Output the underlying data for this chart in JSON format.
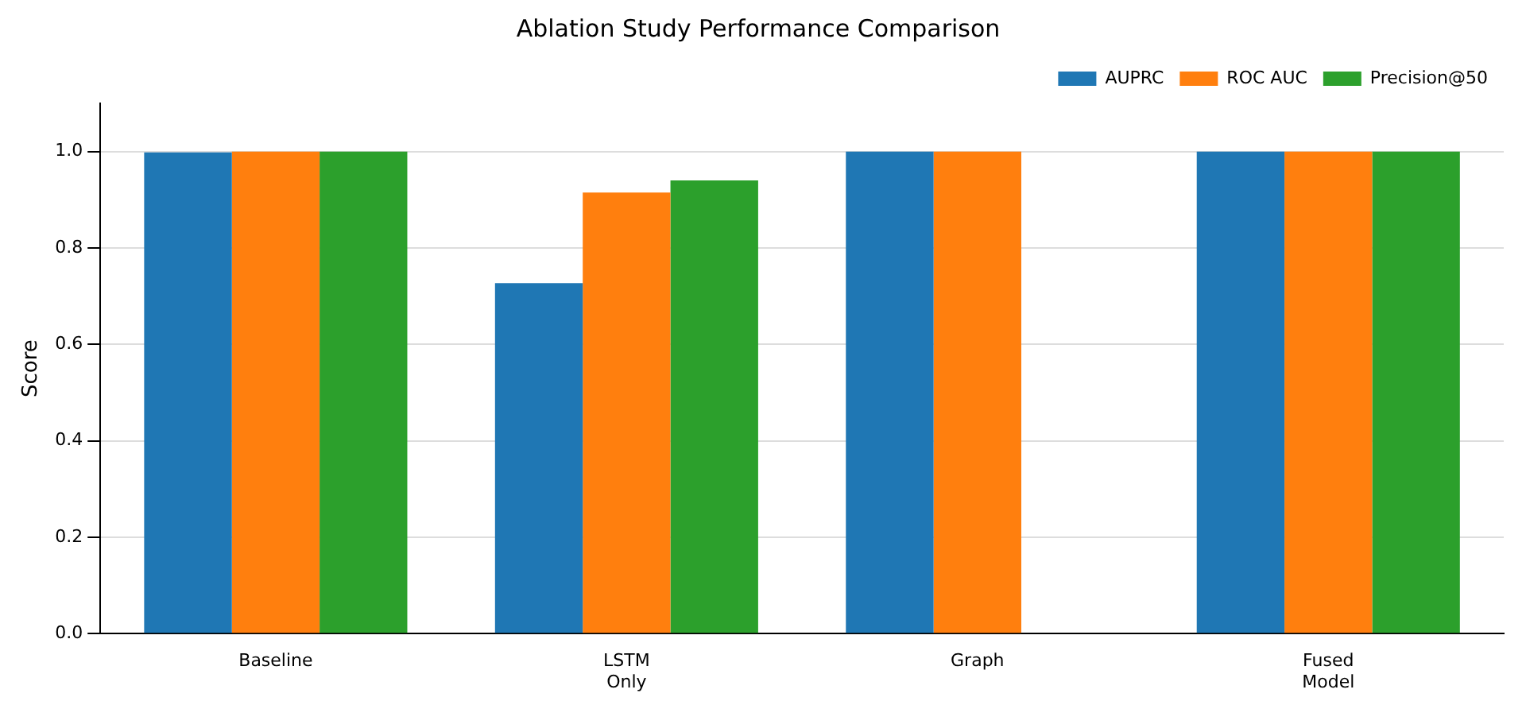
{
  "chart_data": {
    "type": "bar",
    "title": "Ablation Study Performance Comparison",
    "ylabel": "Score",
    "categories": [
      "Baseline",
      "LSTM\nOnly",
      "Graph",
      "Fused\nModel"
    ],
    "series": [
      {
        "name": "AUPRC",
        "color": "#1f77b4",
        "values": [
          0.998,
          0.727,
          1.0,
          1.0
        ]
      },
      {
        "name": "ROC AUC",
        "color": "#ff7f0e",
        "values": [
          1.0,
          0.915,
          1.0,
          1.0
        ]
      },
      {
        "name": "Precision@50",
        "color": "#2ca02c",
        "values": [
          1.0,
          0.94,
          null,
          1.0
        ]
      }
    ],
    "ylim": [
      0,
      1.1
    ],
    "yticks": [
      {
        "value": 0,
        "label": "0.0"
      },
      {
        "value": 0.2,
        "label": "0.2"
      },
      {
        "value": 0.4,
        "label": "0.4"
      },
      {
        "value": 0.6,
        "label": "0.6"
      },
      {
        "value": 0.8,
        "label": "0.8"
      },
      {
        "value": 1.0,
        "label": "1.0"
      }
    ],
    "grid": "y",
    "legend": "top right"
  }
}
